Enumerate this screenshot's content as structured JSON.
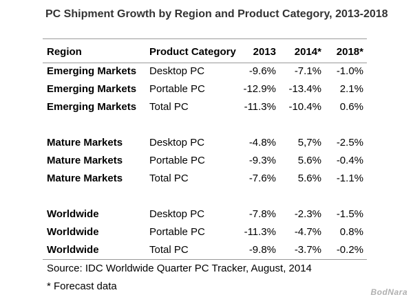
{
  "title": "PC Shipment Growth by Region and Product Category, 2013-2018",
  "columns": {
    "region": "Region",
    "category": "Product Category",
    "y2013": "2013",
    "y2014": "2014*",
    "y2018": "2018*"
  },
  "chart_data": {
    "type": "table",
    "title": "PC Shipment Growth by Region and Product Category, 2013-2018",
    "columns": [
      "Region",
      "Product Category",
      "2013",
      "2014*",
      "2018*"
    ],
    "rows": [
      [
        "Emerging Markets",
        "Desktop PC",
        "-9.6%",
        "-7.1%",
        "-1.0%"
      ],
      [
        "Emerging Markets",
        "Portable PC",
        "-12.9%",
        "-13.4%",
        "2.1%"
      ],
      [
        "Emerging Markets",
        "Total PC",
        "-11.3%",
        "-10.4%",
        "0.6%"
      ],
      [
        "Mature Markets",
        "Desktop PC",
        "-4.8%",
        "5,7%",
        "-2.5%"
      ],
      [
        "Mature Markets",
        "Portable PC",
        "-9.3%",
        "5.6%",
        "-0.4%"
      ],
      [
        "Mature Markets",
        "Total PC",
        "-7.6%",
        "5.6%",
        "-1.1%"
      ],
      [
        "Worldwide",
        "Desktop PC",
        "-7.8%",
        "-2.3%",
        "-1.5%"
      ],
      [
        "Worldwide",
        "Portable PC",
        "-11.3%",
        "-4.7%",
        "0.8%"
      ],
      [
        "Worldwide",
        "Total PC",
        "-9.8%",
        "-3.7%",
        "-0.2%"
      ]
    ]
  },
  "source": "Source: IDC Worldwide Quarter PC Tracker, August, 2014",
  "footnote": "* Forecast data",
  "watermark": "BodNara",
  "colors": {
    "rule": "#999999",
    "title": "#333333",
    "text": "#000000"
  }
}
